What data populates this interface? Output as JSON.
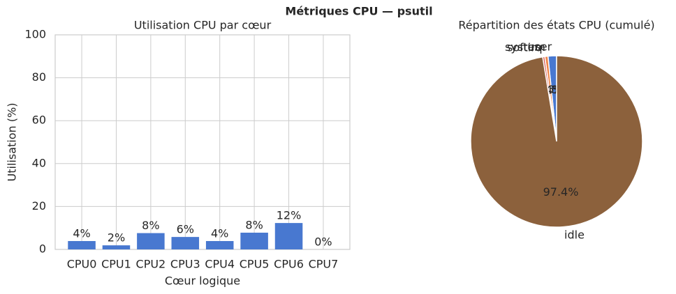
{
  "title": "Métriques CPU — psutil",
  "chart_data": [
    {
      "type": "bar",
      "title": "Utilisation CPU par cœur",
      "x_label": "Cœur logique",
      "y_label": "Utilisation (%)",
      "categories": [
        "CPU0",
        "CPU1",
        "CPU2",
        "CPU3",
        "CPU4",
        "CPU5",
        "CPU6",
        "CPU7"
      ],
      "values": [
        3.9,
        1.9,
        7.6,
        5.8,
        3.9,
        7.8,
        12.3,
        0
      ],
      "value_labels": [
        "4%",
        "2%",
        "8%",
        "6%",
        "4%",
        "8%",
        "12%",
        "0%"
      ],
      "color": "#4878d0",
      "ylim": [
        0,
        100
      ],
      "yticks": [
        0,
        20,
        40,
        60,
        80,
        100
      ],
      "grid": true
    },
    {
      "type": "pie",
      "title": "Répartition des états CPU (cumulé)",
      "categories": [
        "user",
        "system",
        "softirq",
        "idle"
      ],
      "values": [
        1.6,
        0.6,
        0.4,
        97.4
      ],
      "value_labels": [
        "1.6%",
        "0.6%",
        "0.4%",
        "97.4%"
      ],
      "colors": [
        "#4878d0",
        "#ee854a",
        "#d65f5f",
        "#8c613c"
      ]
    }
  ]
}
